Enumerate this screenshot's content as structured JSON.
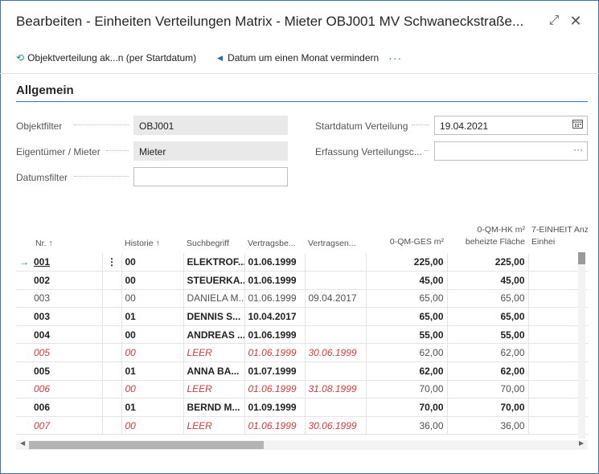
{
  "window": {
    "title": "Bearbeiten - Einheiten Verteilungen Matrix - Mieter OBJ001 MV Schwaneckstraße...",
    "expand_icon": "expand-icon",
    "close_icon": "close-icon"
  },
  "toolbar": {
    "action1_label": "Objektverteilung ak...n (per Startdatum)",
    "action1_icon": "refresh-icon",
    "action2_label": "Datum um einen Monat vermindern",
    "action2_icon": "triangle-left-icon",
    "more_label": "···"
  },
  "section": {
    "title": "Allgemein"
  },
  "fields": {
    "objektfilter": {
      "label": "Objektfilter",
      "value": "OBJ001"
    },
    "eigentuemer": {
      "label": "Eigentümer / Mieter",
      "value": "Mieter"
    },
    "datumsfilter": {
      "label": "Datumsfilter",
      "value": ""
    },
    "startdatum": {
      "label": "Startdatum Verteilung",
      "value": "19.04.2021",
      "icon": "calendar-icon"
    },
    "erfassung": {
      "label": "Erfassung Verteilungsc...",
      "value": "",
      "button": "···"
    }
  },
  "colors": {
    "accent": "#1d6fb0",
    "teal": "#1d8a80",
    "red_row": "#d23a3a",
    "selected_menu": "#cfe9f5"
  },
  "grid": {
    "columns": [
      {
        "label": "Nr. ↑"
      },
      {
        "label": ""
      },
      {
        "label": "Historie ↑"
      },
      {
        "label": "Suchbegriff"
      },
      {
        "label": "Vertragsbe..."
      },
      {
        "label": "Vertragsen..."
      },
      {
        "label": "0-QM-GES m²"
      },
      {
        "label": "0-QM-HK m² beheizte Fläche"
      },
      {
        "label": "7-EINHEIT Anz Einhei"
      }
    ],
    "rows": [
      {
        "style": "bold",
        "nr": "001",
        "hist": "00",
        "such": "ELEKTROF...",
        "vb": "01.06.1999",
        "ve": "",
        "qm": "225,00",
        "hk": "225,00"
      },
      {
        "style": "bold",
        "nr": "002",
        "hist": "00",
        "such": "STEUERKA...",
        "vb": "01.06.1999",
        "ve": "",
        "qm": "45,00",
        "hk": "45,00"
      },
      {
        "style": "norm",
        "nr": "003",
        "hist": "00",
        "such": "DANIELA M...",
        "vb": "01.06.1999",
        "ve": "09.04.2017",
        "qm": "65,00",
        "hk": "65,00"
      },
      {
        "style": "bold",
        "nr": "003",
        "hist": "01",
        "such": "DENNIS S...",
        "vb": "10.04.2017",
        "ve": "",
        "qm": "65,00",
        "hk": "65,00"
      },
      {
        "style": "bold",
        "nr": "004",
        "hist": "00",
        "such": "ANDREAS ...",
        "vb": "01.06.1999",
        "ve": "",
        "qm": "55,00",
        "hk": "55,00"
      },
      {
        "style": "red",
        "nr": "005",
        "hist": "00",
        "such": "LEER",
        "vb": "01.06.1999",
        "ve": "30.06.1999",
        "qm": "62,00",
        "hk": "62,00"
      },
      {
        "style": "bold",
        "nr": "005",
        "hist": "01",
        "such": "ANNA BA...",
        "vb": "01.07.1999",
        "ve": "",
        "qm": "62,00",
        "hk": "62,00"
      },
      {
        "style": "red",
        "nr": "006",
        "hist": "00",
        "such": "LEER",
        "vb": "01.06.1999",
        "ve": "31.08.1999",
        "qm": "70,00",
        "hk": "70,00"
      },
      {
        "style": "bold",
        "nr": "006",
        "hist": "01",
        "such": "BERND M...",
        "vb": "01.09.1999",
        "ve": "",
        "qm": "70,00",
        "hk": "70,00"
      },
      {
        "style": "red",
        "nr": "007",
        "hist": "00",
        "such": "LEER",
        "vb": "01.06.1999",
        "ve": "30.06.1999",
        "qm": "36,00",
        "hk": "36,00"
      }
    ],
    "selected_row_marker": "→",
    "row_menu": "⋮"
  }
}
